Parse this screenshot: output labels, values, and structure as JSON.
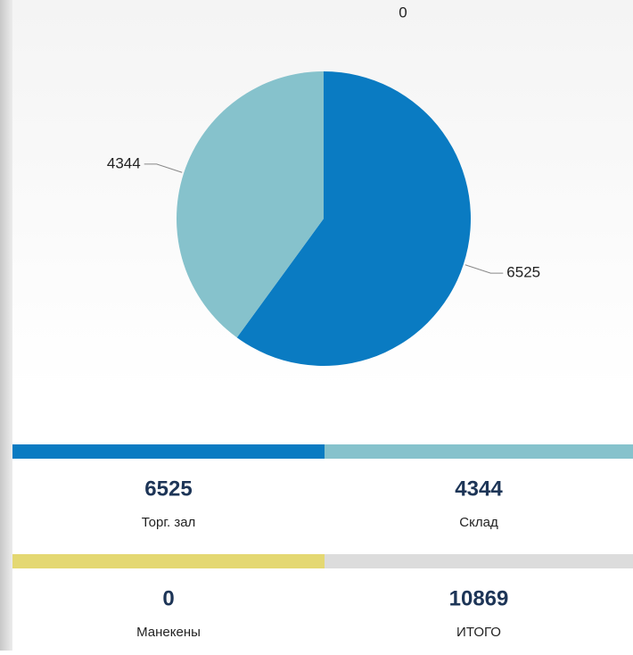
{
  "chart_data": {
    "type": "pie",
    "categories": [
      "Торг. зал",
      "Склад",
      "Манекены"
    ],
    "values": [
      6525,
      4344,
      0
    ],
    "colors": [
      "#0a7bc2",
      "#86c2cc",
      "#e4d872"
    ]
  },
  "total": {
    "value": 10869,
    "label": "ИТОГО",
    "color": "#dcdcdc"
  }
}
